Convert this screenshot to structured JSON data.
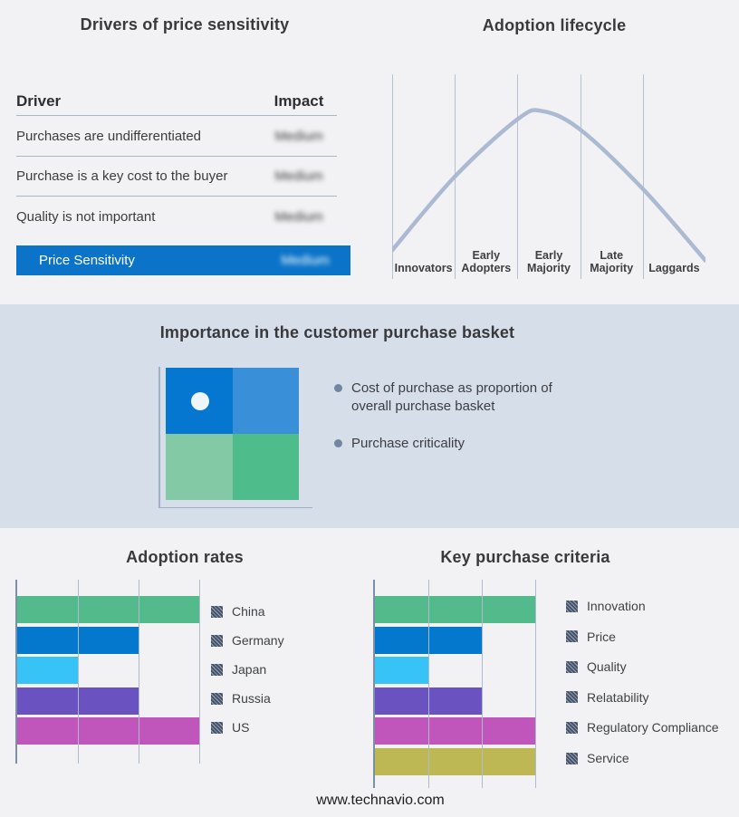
{
  "page": {
    "footer": "www.technavio.com"
  },
  "colors": {
    "page_bg": "#f2f2f4",
    "band_bg": "#d5dee9",
    "highlight_blue": "#0b74c9",
    "divider": "#a9b7cb",
    "grid_line": "#aebbce",
    "axis_line": "#7d8fa8",
    "curve": "#abbad2",
    "lifecycle_grid": "#b6c2d4",
    "bullet_dot": "#7286a3"
  },
  "drivers_panel": {
    "title": "Drivers of price sensitivity",
    "header": {
      "driver": "Driver",
      "impact": "Impact"
    },
    "rows": [
      {
        "driver": "Purchases are undifferentiated",
        "impact": "Medium",
        "impact_blurred": true
      },
      {
        "driver": "Purchase is a key cost to the buyer",
        "impact": "Medium",
        "impact_blurred": true
      },
      {
        "driver": "Quality is not important",
        "impact": "Medium",
        "impact_blurred": true
      }
    ],
    "highlight": {
      "driver": "Price Sensitivity",
      "impact": "Medium",
      "impact_blurred": true
    }
  },
  "importance_band": {
    "title": "Importance in the customer purchase basket",
    "bullets": [
      "Cost of purchase as proportion of overall purchase basket",
      "Purchase criticality"
    ],
    "quadrant_colors": {
      "top_left": "#0577d0",
      "top_right": "#3a8fd9",
      "bottom_left": "#83c9a6",
      "bottom_right": "#4fbd8b"
    }
  },
  "chart_data": [
    {
      "id": "adoption-lifecycle",
      "type": "line",
      "title": "Adoption lifecycle",
      "categories": [
        "Innovators",
        "Early Adopters",
        "Early Majority",
        "Late Majority",
        "Laggards"
      ],
      "description": "Bell-shaped adoption curve peaking in the Early Majority segment; five segments separated by vertical gridlines; no numeric axes",
      "curve": {
        "x_fraction": [
          0,
          0.2,
          0.4,
          0.48,
          0.6,
          0.8,
          1.0
        ],
        "y_fraction": [
          0.14,
          0.5,
          0.78,
          0.82,
          0.73,
          0.44,
          0.09
        ]
      },
      "grid": true,
      "legend_position": "none"
    },
    {
      "id": "adoption-rates",
      "type": "bar",
      "title": "Adoption rates",
      "categories": [
        "China",
        "Germany",
        "Japan",
        "Russia",
        "US"
      ],
      "values": [
        3,
        2,
        1,
        2,
        3
      ],
      "colors": [
        "#53bb8b",
        "#0478cd",
        "#38c3f6",
        "#6a53c0",
        "#c055bb"
      ],
      "xlabel": "",
      "ylabel": "",
      "xlim": [
        0,
        3
      ],
      "grid": true,
      "legend_position": "right",
      "note": "Horizontal bars, unlabeled axis; bar lengths read in gridline units (1-3)"
    },
    {
      "id": "key-purchase-criteria",
      "type": "bar",
      "title": "Key purchase criteria",
      "categories": [
        "Innovation",
        "Price",
        "Quality",
        "Relatability",
        "Regulatory Compliance",
        "Service"
      ],
      "values": [
        3,
        2,
        1,
        2,
        3,
        3
      ],
      "colors": [
        "#53bb8b",
        "#0478cd",
        "#38c3f6",
        "#6a53c0",
        "#c055bb",
        "#bdb854"
      ],
      "xlabel": "",
      "ylabel": "",
      "xlim": [
        0,
        3
      ],
      "grid": true,
      "legend_position": "right",
      "note": "Horizontal bars, unlabeled axis; bar lengths read in gridline units (1-3)"
    }
  ]
}
